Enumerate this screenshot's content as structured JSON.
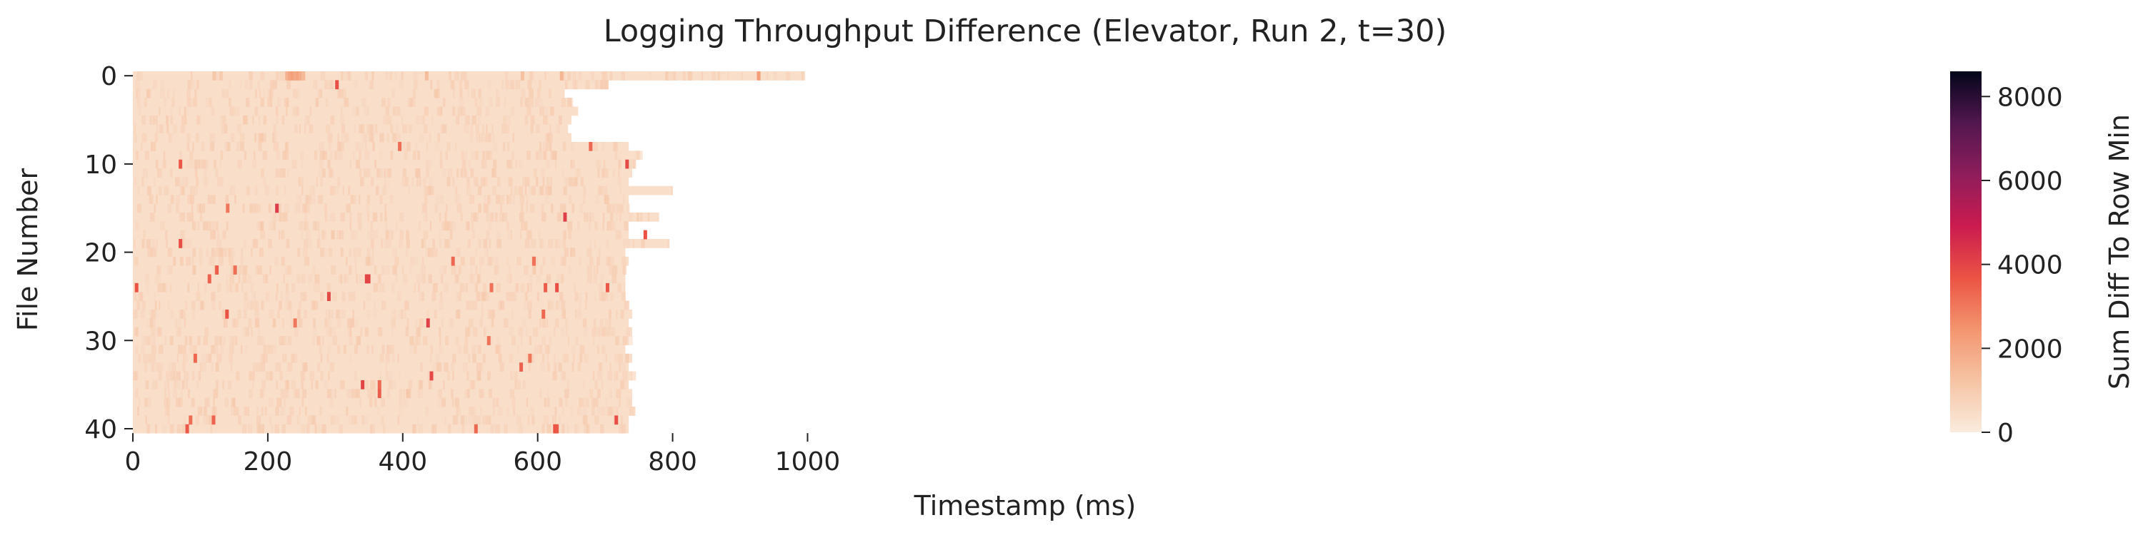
{
  "chart_data": {
    "type": "heatmap",
    "title": "Logging Throughput Difference (Elevator, Run 2, t=30)",
    "xlabel": "Timestamp (ms)",
    "ylabel": "File Number",
    "xlim": [
      0,
      1100
    ],
    "ylim": [
      0,
      41
    ],
    "x_ticks": [
      0,
      200,
      400,
      600,
      800,
      1000
    ],
    "y_ticks": [
      0,
      10,
      20,
      30,
      40
    ],
    "colorbar": {
      "label": "Sum Diff To Row Min",
      "range": [
        0,
        8600
      ],
      "ticks": [
        0,
        2000,
        4000,
        6000,
        8000
      ],
      "colormap": "rocket_r",
      "color_stops": [
        "#faebdd",
        "#f6c4a4",
        "#f3956f",
        "#eb5344",
        "#cb1b4f",
        "#8e1d5b",
        "#52174f",
        "#03051a"
      ]
    },
    "background_value": 400,
    "row_end_ms": [
      995,
      705,
      640,
      650,
      660,
      650,
      645,
      650,
      735,
      750,
      745,
      740,
      735,
      800,
      735,
      735,
      780,
      735,
      735,
      795,
      730,
      735,
      730,
      730,
      730,
      730,
      730,
      740,
      735,
      740,
      735,
      730,
      740,
      735,
      740,
      735,
      740,
      740,
      745,
      735,
      735
    ],
    "hotspots": [
      {
        "file": 0,
        "t": 228,
        "value": 1700
      },
      {
        "file": 0,
        "t": 232,
        "value": 2000
      },
      {
        "file": 0,
        "t": 236,
        "value": 2200
      },
      {
        "file": 0,
        "t": 240,
        "value": 1900
      },
      {
        "file": 0,
        "t": 244,
        "value": 2100
      },
      {
        "file": 0,
        "t": 248,
        "value": 1800
      },
      {
        "file": 0,
        "t": 252,
        "value": 1500
      },
      {
        "file": 0,
        "t": 120,
        "value": 1100
      },
      {
        "file": 0,
        "t": 130,
        "value": 1000
      },
      {
        "file": 0,
        "t": 435,
        "value": 1400
      },
      {
        "file": 0,
        "t": 577,
        "value": 1300
      },
      {
        "file": 0,
        "t": 635,
        "value": 1600
      },
      {
        "file": 0,
        "t": 927,
        "value": 2200
      },
      {
        "file": 1,
        "t": 302,
        "value": 3800
      },
      {
        "file": 8,
        "t": 395,
        "value": 3200
      },
      {
        "file": 8,
        "t": 678,
        "value": 3300
      },
      {
        "file": 10,
        "t": 70,
        "value": 3600
      },
      {
        "file": 10,
        "t": 732,
        "value": 3900
      },
      {
        "file": 15,
        "t": 213,
        "value": 4200
      },
      {
        "file": 15,
        "t": 140,
        "value": 3000
      },
      {
        "file": 16,
        "t": 640,
        "value": 4100
      },
      {
        "file": 18,
        "t": 759,
        "value": 3700
      },
      {
        "file": 19,
        "t": 70,
        "value": 3800
      },
      {
        "file": 21,
        "t": 474,
        "value": 3300
      },
      {
        "file": 21,
        "t": 594,
        "value": 3100
      },
      {
        "file": 22,
        "t": 124,
        "value": 3500
      },
      {
        "file": 22,
        "t": 151,
        "value": 3200
      },
      {
        "file": 23,
        "t": 113,
        "value": 3400
      },
      {
        "file": 23,
        "t": 346,
        "value": 4000
      },
      {
        "file": 23,
        "t": 349,
        "value": 4000
      },
      {
        "file": 24,
        "t": 5,
        "value": 3700
      },
      {
        "file": 24,
        "t": 611,
        "value": 3500
      },
      {
        "file": 24,
        "t": 628,
        "value": 3800
      },
      {
        "file": 24,
        "t": 703,
        "value": 3600
      },
      {
        "file": 24,
        "t": 531,
        "value": 3100
      },
      {
        "file": 25,
        "t": 290,
        "value": 3900
      },
      {
        "file": 27,
        "t": 139,
        "value": 3700
      },
      {
        "file": 27,
        "t": 608,
        "value": 3300
      },
      {
        "file": 28,
        "t": 240,
        "value": 3000
      },
      {
        "file": 28,
        "t": 437,
        "value": 4100
      },
      {
        "file": 30,
        "t": 527,
        "value": 3100
      },
      {
        "file": 32,
        "t": 92,
        "value": 3300
      },
      {
        "file": 32,
        "t": 588,
        "value": 3000
      },
      {
        "file": 33,
        "t": 575,
        "value": 3400
      },
      {
        "file": 34,
        "t": 442,
        "value": 3900
      },
      {
        "file": 35,
        "t": 340,
        "value": 4000
      },
      {
        "file": 35,
        "t": 365,
        "value": 3300
      },
      {
        "file": 36,
        "t": 365,
        "value": 3500
      },
      {
        "file": 39,
        "t": 85,
        "value": 3200
      },
      {
        "file": 39,
        "t": 119,
        "value": 3400
      },
      {
        "file": 39,
        "t": 716,
        "value": 3800
      },
      {
        "file": 40,
        "t": 80,
        "value": 3600
      },
      {
        "file": 40,
        "t": 508,
        "value": 3300
      },
      {
        "file": 40,
        "t": 625,
        "value": 3700
      },
      {
        "file": 40,
        "t": 628,
        "value": 3600
      }
    ]
  }
}
